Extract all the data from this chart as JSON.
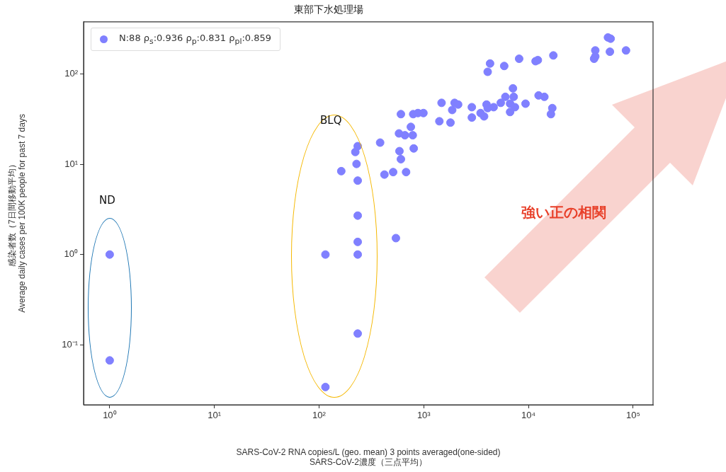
{
  "chart_data": {
    "type": "scatter",
    "title": "東部下水処理場",
    "xlabel": "SARS-CoV-2 RNA copies/L (geo. mean) 3 points averaged(one-sided)\nSARS-CoV-2濃度（三点平均）",
    "ylabel": "感染者数（7日間移動平均）\nAverage daily cases per 100K people for past 7 days",
    "log": "xy",
    "grid": false,
    "legend": "top left",
    "marker": "circle",
    "xlim": [
      0.563,
      155000
    ],
    "ylim": [
      0.0216,
      380
    ],
    "xticks": [
      {
        "value": 1,
        "label": "10⁰"
      },
      {
        "value": 10,
        "label": "10¹"
      },
      {
        "value": 100,
        "label": "10²"
      },
      {
        "value": 1000,
        "label": "10³"
      },
      {
        "value": 10000,
        "label": "10⁴"
      },
      {
        "value": 100000,
        "label": "10⁵"
      }
    ],
    "yticks": [
      {
        "value": 0.1,
        "label": "10⁻¹"
      },
      {
        "value": 1,
        "label": "10⁰"
      },
      {
        "value": 10,
        "label": "10¹"
      },
      {
        "value": 100,
        "label": "10²"
      }
    ],
    "series": [
      {
        "name": "N:88 ρ$_{s}$:0.936 ρ$_{p}$:0.831 ρ$_{pl}$:0.859",
        "color": "#8080ff",
        "x": [
          61000,
          57500,
          43500,
          60000,
          85500,
          43500,
          42400,
          4300,
          4080,
          5870,
          8150,
          11700,
          12300,
          17300,
          7110,
          12500,
          14200,
          16900,
          16400,
          9380,
          6020,
          7230,
          6680,
          5440,
          7430,
          6680,
          4650,
          3980,
          4080,
          3490,
          3770,
          2880,
          2880,
          2130,
          1970,
          1870,
          1480,
          1410,
          1800,
          605,
          793,
          880,
          993,
          753,
          580,
          661,
          785,
          586,
          605,
          802,
          383,
          421,
          510,
          678,
          163,
          234,
          222,
          228,
          234,
          234,
          542,
          234,
          234,
          115,
          234,
          115,
          1,
          1
        ],
        "values": [
          247,
          255,
          183,
          177,
          183,
          157,
          148,
          131,
          106,
          123,
          148,
          139,
          143,
          161,
          69.5,
          58,
          56,
          42,
          36,
          47,
          56,
          56,
          47,
          48,
          43,
          38,
          43,
          46,
          42,
          37,
          34,
          43,
          33,
          46,
          48,
          40,
          48,
          30,
          29,
          36,
          36,
          37,
          37,
          26,
          22,
          21,
          21,
          14,
          11.4,
          15,
          17.4,
          7.7,
          8.2,
          8.2,
          8.4,
          15.9,
          13.7,
          10.1,
          6.6,
          2.7,
          1.52,
          1.38,
          1.0,
          1.0,
          0.133,
          0.034,
          1.0,
          0.067
        ]
      }
    ],
    "annotations": [
      "ND",
      "BLQ",
      "強い正の相関"
    ]
  }
}
